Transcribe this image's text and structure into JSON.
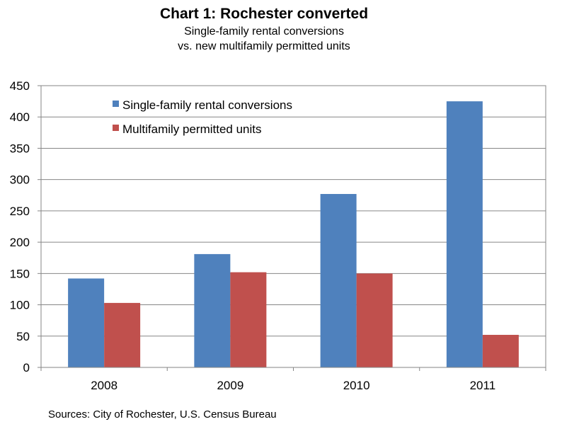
{
  "chart_data": {
    "type": "bar",
    "title": "Chart 1: Rochester converted",
    "subtitle_lines": [
      "Single-family rental conversions",
      "vs. new multifamily permitted units"
    ],
    "categories": [
      "2008",
      "2009",
      "2010",
      "2011"
    ],
    "series": [
      {
        "name": "Single-family rental conversions",
        "color": "#4F81BD",
        "values": [
          142,
          181,
          277,
          425
        ]
      },
      {
        "name": "Multifamily permitted units",
        "color": "#C0504D",
        "values": [
          103,
          152,
          150,
          52
        ]
      }
    ],
    "xlabel": "",
    "ylabel": "",
    "ylim": [
      0,
      450
    ],
    "yticks": [
      "0",
      "50",
      "100",
      "150",
      "200",
      "250",
      "300",
      "350",
      "400",
      "450"
    ],
    "grid": true,
    "legend_position": "top-left",
    "source": "Sources: City of Rochester, U.S. Census Bureau"
  }
}
